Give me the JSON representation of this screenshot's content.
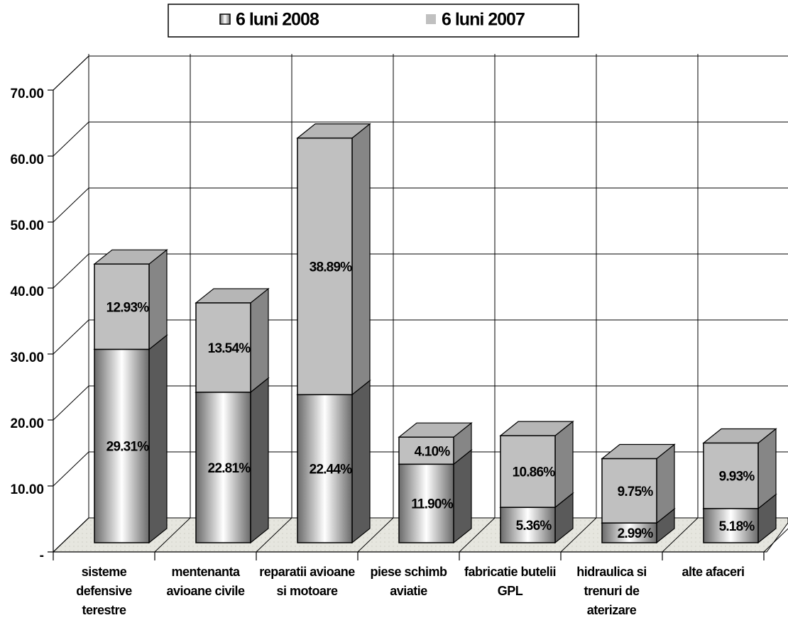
{
  "chart_data": {
    "type": "bar3d_stacked",
    "categories": [
      "sisteme defensive terestre",
      "mentenanta avioane civile",
      "reparatii avioane si motoare",
      "piese schimb aviatie",
      "fabricatie butelii GPL",
      "hidraulica si trenuri de aterizare",
      "alte afaceri"
    ],
    "series": [
      {
        "name": "6 luni 2008",
        "color": "#808080",
        "values": [
          29.31,
          22.81,
          22.44,
          11.9,
          5.36,
          2.99,
          5.18
        ],
        "value_labels": [
          "29.31%",
          "22.81%",
          "22.44%",
          "11.90%",
          "5.36%",
          "2.99%",
          "5.18%"
        ]
      },
      {
        "name": "6 luni 2007",
        "color": "#c0c0c0",
        "values": [
          12.93,
          13.54,
          38.89,
          4.1,
          10.86,
          9.75,
          9.93
        ],
        "value_labels": [
          "12.93%",
          "13.54%",
          "38.89%",
          "4.10%",
          "10.86%",
          "9.75%",
          "9.93%"
        ]
      }
    ],
    "ylim": [
      0,
      70
    ],
    "yticks": [
      {
        "value": 0,
        "label": "-"
      },
      {
        "value": 10,
        "label": "10.00"
      },
      {
        "value": 20,
        "label": "20.00"
      },
      {
        "value": 30,
        "label": "30.00"
      },
      {
        "value": 40,
        "label": "40.00"
      },
      {
        "value": 50,
        "label": "50.00"
      },
      {
        "value": 60,
        "label": "60.00"
      },
      {
        "value": 70,
        "label": "70.00"
      }
    ],
    "grid": true,
    "legend": "top"
  }
}
